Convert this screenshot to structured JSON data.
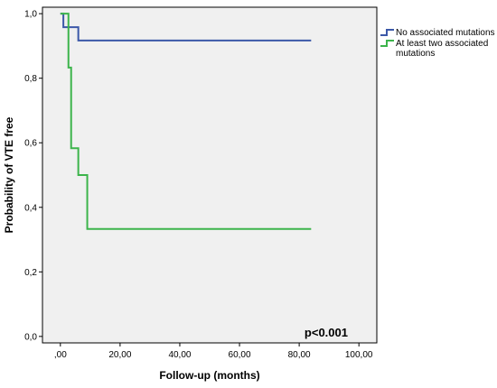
{
  "chart_data": {
    "type": "line",
    "title": "",
    "xlabel": "Follow-up (months)",
    "ylabel": "Probability of VTE free",
    "xlim": [
      -6,
      106
    ],
    "ylim": [
      -0.02,
      1.02
    ],
    "x_ticks": [
      0,
      20,
      40,
      60,
      80,
      100
    ],
    "x_tick_labels": [
      ",00",
      "20,00",
      "40,00",
      "60,00",
      "80,00",
      "100,00"
    ],
    "y_ticks": [
      0,
      0.2,
      0.4,
      0.6,
      0.8,
      1.0
    ],
    "y_tick_labels": [
      "0,0",
      "0,2",
      "0,4",
      "0,6",
      "0,8",
      "1,0"
    ],
    "grid": false,
    "legend_position": "right-top",
    "annotation": "p<0.001",
    "series": [
      {
        "name": "No associated mutations",
        "color": "#3b58a8",
        "step": true,
        "x": [
          0,
          1,
          6,
          84
        ],
        "y": [
          1.0,
          0.958,
          0.917,
          0.917
        ]
      },
      {
        "name": "At least two associated mutations",
        "color": "#3cb44b",
        "step": true,
        "x": [
          0,
          1.8,
          2.7,
          3.6,
          6,
          9,
          84
        ],
        "y": [
          1.0,
          1.0,
          0.833,
          0.583,
          0.5,
          0.333,
          0.333
        ]
      }
    ]
  }
}
